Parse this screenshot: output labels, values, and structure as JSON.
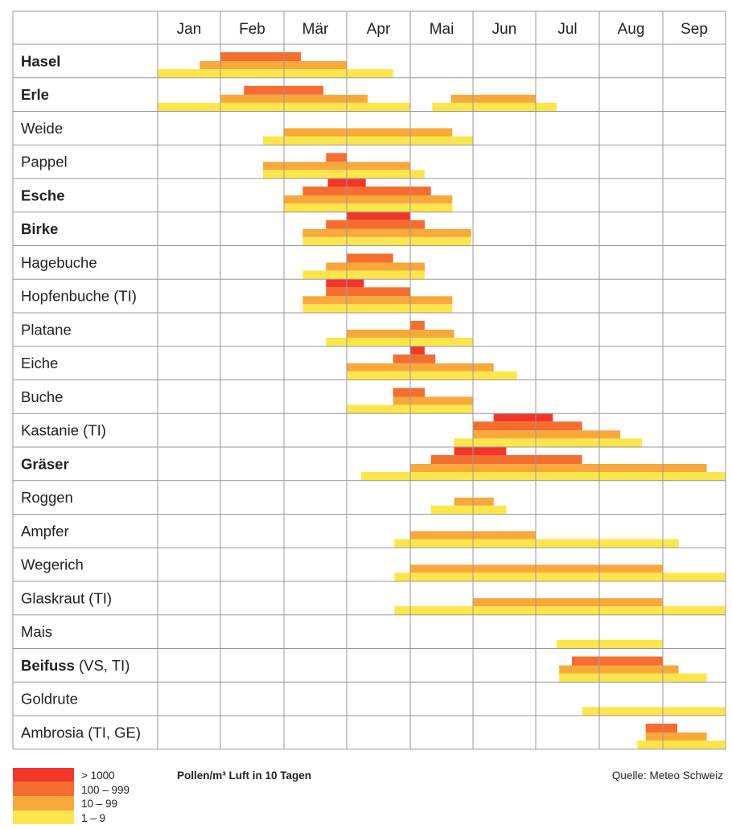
{
  "chart_data": {
    "type": "bar",
    "subtype": "pollen-calendar",
    "title": "",
    "units_label": "Pollen/m³ Luft in 10 Tagen",
    "source": "Quelle: Meteo Schweiz",
    "months": [
      "Jan",
      "Feb",
      "Mär",
      "Apr",
      "Mai",
      "Jun",
      "Jul",
      "Aug",
      "Sep"
    ],
    "x_unit": "months from 1 Jan (0 = 1 Jan, 9 = end of Sep)",
    "levels": [
      {
        "key": "l4",
        "label": "> 1000",
        "color": "#f2362a"
      },
      {
        "key": "l3",
        "label": "100 – 999",
        "color": "#f46e30"
      },
      {
        "key": "l2",
        "label": "10 – 99",
        "color": "#f9a83b"
      },
      {
        "key": "l1",
        "label": "1 – 9",
        "color": "#fde64b"
      }
    ],
    "plants": [
      {
        "name": "Hasel",
        "suffix": "",
        "bold": true,
        "l4": [],
        "l3": [
          [
            1.0,
            2.27
          ]
        ],
        "l2": [
          [
            0.67,
            3.0
          ]
        ],
        "l1": [
          [
            0.0,
            3.73
          ]
        ]
      },
      {
        "name": "Erle",
        "suffix": "",
        "bold": true,
        "l4": [],
        "l3": [
          [
            1.37,
            2.63
          ]
        ],
        "l2": [
          [
            1.0,
            3.33
          ],
          [
            4.65,
            6.0
          ]
        ],
        "l1": [
          [
            0.0,
            4.0
          ],
          [
            4.35,
            6.33
          ]
        ]
      },
      {
        "name": "Weide",
        "suffix": "",
        "bold": false,
        "l4": [],
        "l3": [],
        "l2": [
          [
            2.0,
            4.67
          ]
        ],
        "l1": [
          [
            1.67,
            5.0
          ]
        ]
      },
      {
        "name": "Pappel",
        "suffix": "",
        "bold": false,
        "l4": [],
        "l3": [
          [
            2.67,
            3.0
          ]
        ],
        "l2": [
          [
            1.67,
            4.0
          ]
        ],
        "l1": [
          [
            1.67,
            4.23
          ]
        ]
      },
      {
        "name": "Esche",
        "suffix": "",
        "bold": true,
        "l4": [
          [
            2.7,
            3.3
          ]
        ],
        "l3": [
          [
            2.3,
            4.33
          ]
        ],
        "l2": [
          [
            2.0,
            4.67
          ]
        ],
        "l1": [
          [
            2.0,
            4.67
          ]
        ]
      },
      {
        "name": "Birke",
        "suffix": "",
        "bold": true,
        "l4": [
          [
            3.0,
            4.0
          ]
        ],
        "l3": [
          [
            2.67,
            4.23
          ]
        ],
        "l2": [
          [
            2.3,
            4.97
          ]
        ],
        "l1": [
          [
            2.3,
            4.97
          ]
        ]
      },
      {
        "name": "Hagebuche",
        "suffix": "",
        "bold": false,
        "l4": [],
        "l3": [
          [
            3.0,
            3.73
          ]
        ],
        "l2": [
          [
            2.67,
            4.23
          ]
        ],
        "l1": [
          [
            2.3,
            4.23
          ]
        ]
      },
      {
        "name": "Hopfenbuche",
        "suffix": " (TI)",
        "bold": false,
        "l4": [
          [
            2.67,
            3.27
          ]
        ],
        "l3": [
          [
            2.67,
            4.0
          ]
        ],
        "l2": [
          [
            2.3,
            4.67
          ]
        ],
        "l1": [
          [
            2.3,
            4.67
          ]
        ]
      },
      {
        "name": "Platane",
        "suffix": "",
        "bold": false,
        "l4": [],
        "l3": [
          [
            4.0,
            4.23
          ]
        ],
        "l2": [
          [
            3.0,
            4.7
          ]
        ],
        "l1": [
          [
            2.67,
            5.0
          ]
        ]
      },
      {
        "name": "Eiche",
        "suffix": "",
        "bold": false,
        "l4": [
          [
            4.0,
            4.23
          ]
        ],
        "l3": [
          [
            3.73,
            4.4
          ]
        ],
        "l2": [
          [
            3.0,
            5.33
          ]
        ],
        "l1": [
          [
            3.0,
            5.7
          ]
        ]
      },
      {
        "name": "Buche",
        "suffix": "",
        "bold": false,
        "l4": [],
        "l3": [
          [
            3.73,
            4.23
          ]
        ],
        "l2": [
          [
            3.73,
            5.0
          ]
        ],
        "l1": [
          [
            3.0,
            5.0
          ]
        ]
      },
      {
        "name": "Kastanie",
        "suffix": " (TI)",
        "bold": false,
        "l4": [
          [
            5.33,
            6.27
          ]
        ],
        "l3": [
          [
            5.0,
            6.73
          ]
        ],
        "l2": [
          [
            5.0,
            7.33
          ]
        ],
        "l1": [
          [
            4.7,
            7.67
          ]
        ]
      },
      {
        "name": "Gräser",
        "suffix": "",
        "bold": true,
        "l4": [
          [
            4.7,
            5.53
          ]
        ],
        "l3": [
          [
            4.33,
            6.73
          ]
        ],
        "l2": [
          [
            4.0,
            8.7
          ]
        ],
        "l1": [
          [
            3.23,
            9.0
          ]
        ]
      },
      {
        "name": "Roggen",
        "suffix": "",
        "bold": false,
        "l4": [],
        "l3": [],
        "l2": [
          [
            4.7,
            5.33
          ]
        ],
        "l1": [
          [
            4.33,
            5.53
          ]
        ]
      },
      {
        "name": "Ampfer",
        "suffix": "",
        "bold": false,
        "l4": [],
        "l3": [],
        "l2": [
          [
            4.0,
            6.0
          ]
        ],
        "l1": [
          [
            3.75,
            8.25
          ]
        ]
      },
      {
        "name": "Wegerich",
        "suffix": "",
        "bold": false,
        "l4": [],
        "l3": [],
        "l2": [
          [
            4.0,
            8.0
          ]
        ],
        "l1": [
          [
            3.75,
            9.0
          ]
        ]
      },
      {
        "name": "Glaskraut",
        "suffix": " (TI)",
        "bold": false,
        "l4": [],
        "l3": [],
        "l2": [
          [
            5.0,
            8.0
          ]
        ],
        "l1": [
          [
            3.75,
            9.0
          ]
        ]
      },
      {
        "name": "Mais",
        "suffix": "",
        "bold": false,
        "l4": [],
        "l3": [],
        "l2": [],
        "l1": [
          [
            6.33,
            8.0
          ]
        ]
      },
      {
        "name": "Beifuss",
        "suffix": " (VS, TI)",
        "bold": true,
        "l4": [],
        "l3": [
          [
            6.57,
            8.0
          ]
        ],
        "l2": [
          [
            6.37,
            8.25
          ]
        ],
        "l1": [
          [
            6.37,
            8.7
          ]
        ]
      },
      {
        "name": "Goldrute",
        "suffix": "",
        "bold": false,
        "l4": [],
        "l3": [],
        "l2": [],
        "l1": [
          [
            6.73,
            9.0
          ]
        ]
      },
      {
        "name": "Ambrosia",
        "suffix": " (TI, GE)",
        "bold": false,
        "l4": [],
        "l3": [
          [
            7.73,
            8.23
          ]
        ],
        "l2": [
          [
            7.73,
            8.7
          ]
        ],
        "l1": [
          [
            7.6,
            9.0
          ]
        ]
      }
    ]
  }
}
